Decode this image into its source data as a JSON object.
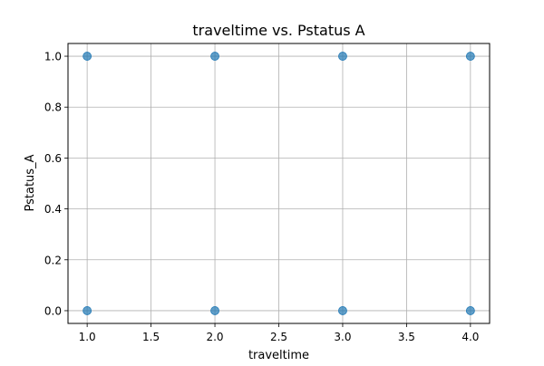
{
  "chart_data": {
    "type": "scatter",
    "title": "traveltime vs. Pstatus A",
    "xlabel": "traveltime",
    "ylabel": "Pstatus_A",
    "xlim": [
      0.85,
      4.15
    ],
    "ylim": [
      -0.05,
      1.05
    ],
    "xticks": [
      1.0,
      1.5,
      2.0,
      2.5,
      3.0,
      3.5,
      4.0
    ],
    "xtick_labels": [
      "1.0",
      "1.5",
      "2.0",
      "2.5",
      "3.0",
      "3.5",
      "4.0"
    ],
    "yticks": [
      0.0,
      0.2,
      0.4,
      0.6,
      0.8,
      1.0
    ],
    "ytick_labels": [
      "0.0",
      "0.2",
      "0.4",
      "0.6",
      "0.8",
      "1.0"
    ],
    "grid": true,
    "marker_color": "#1f77b4",
    "points": [
      {
        "x": 1.0,
        "y": 1.0
      },
      {
        "x": 2.0,
        "y": 1.0
      },
      {
        "x": 3.0,
        "y": 1.0
      },
      {
        "x": 4.0,
        "y": 1.0
      },
      {
        "x": 1.0,
        "y": 0.0
      },
      {
        "x": 2.0,
        "y": 0.0
      },
      {
        "x": 3.0,
        "y": 0.0
      },
      {
        "x": 4.0,
        "y": 0.0
      }
    ]
  }
}
